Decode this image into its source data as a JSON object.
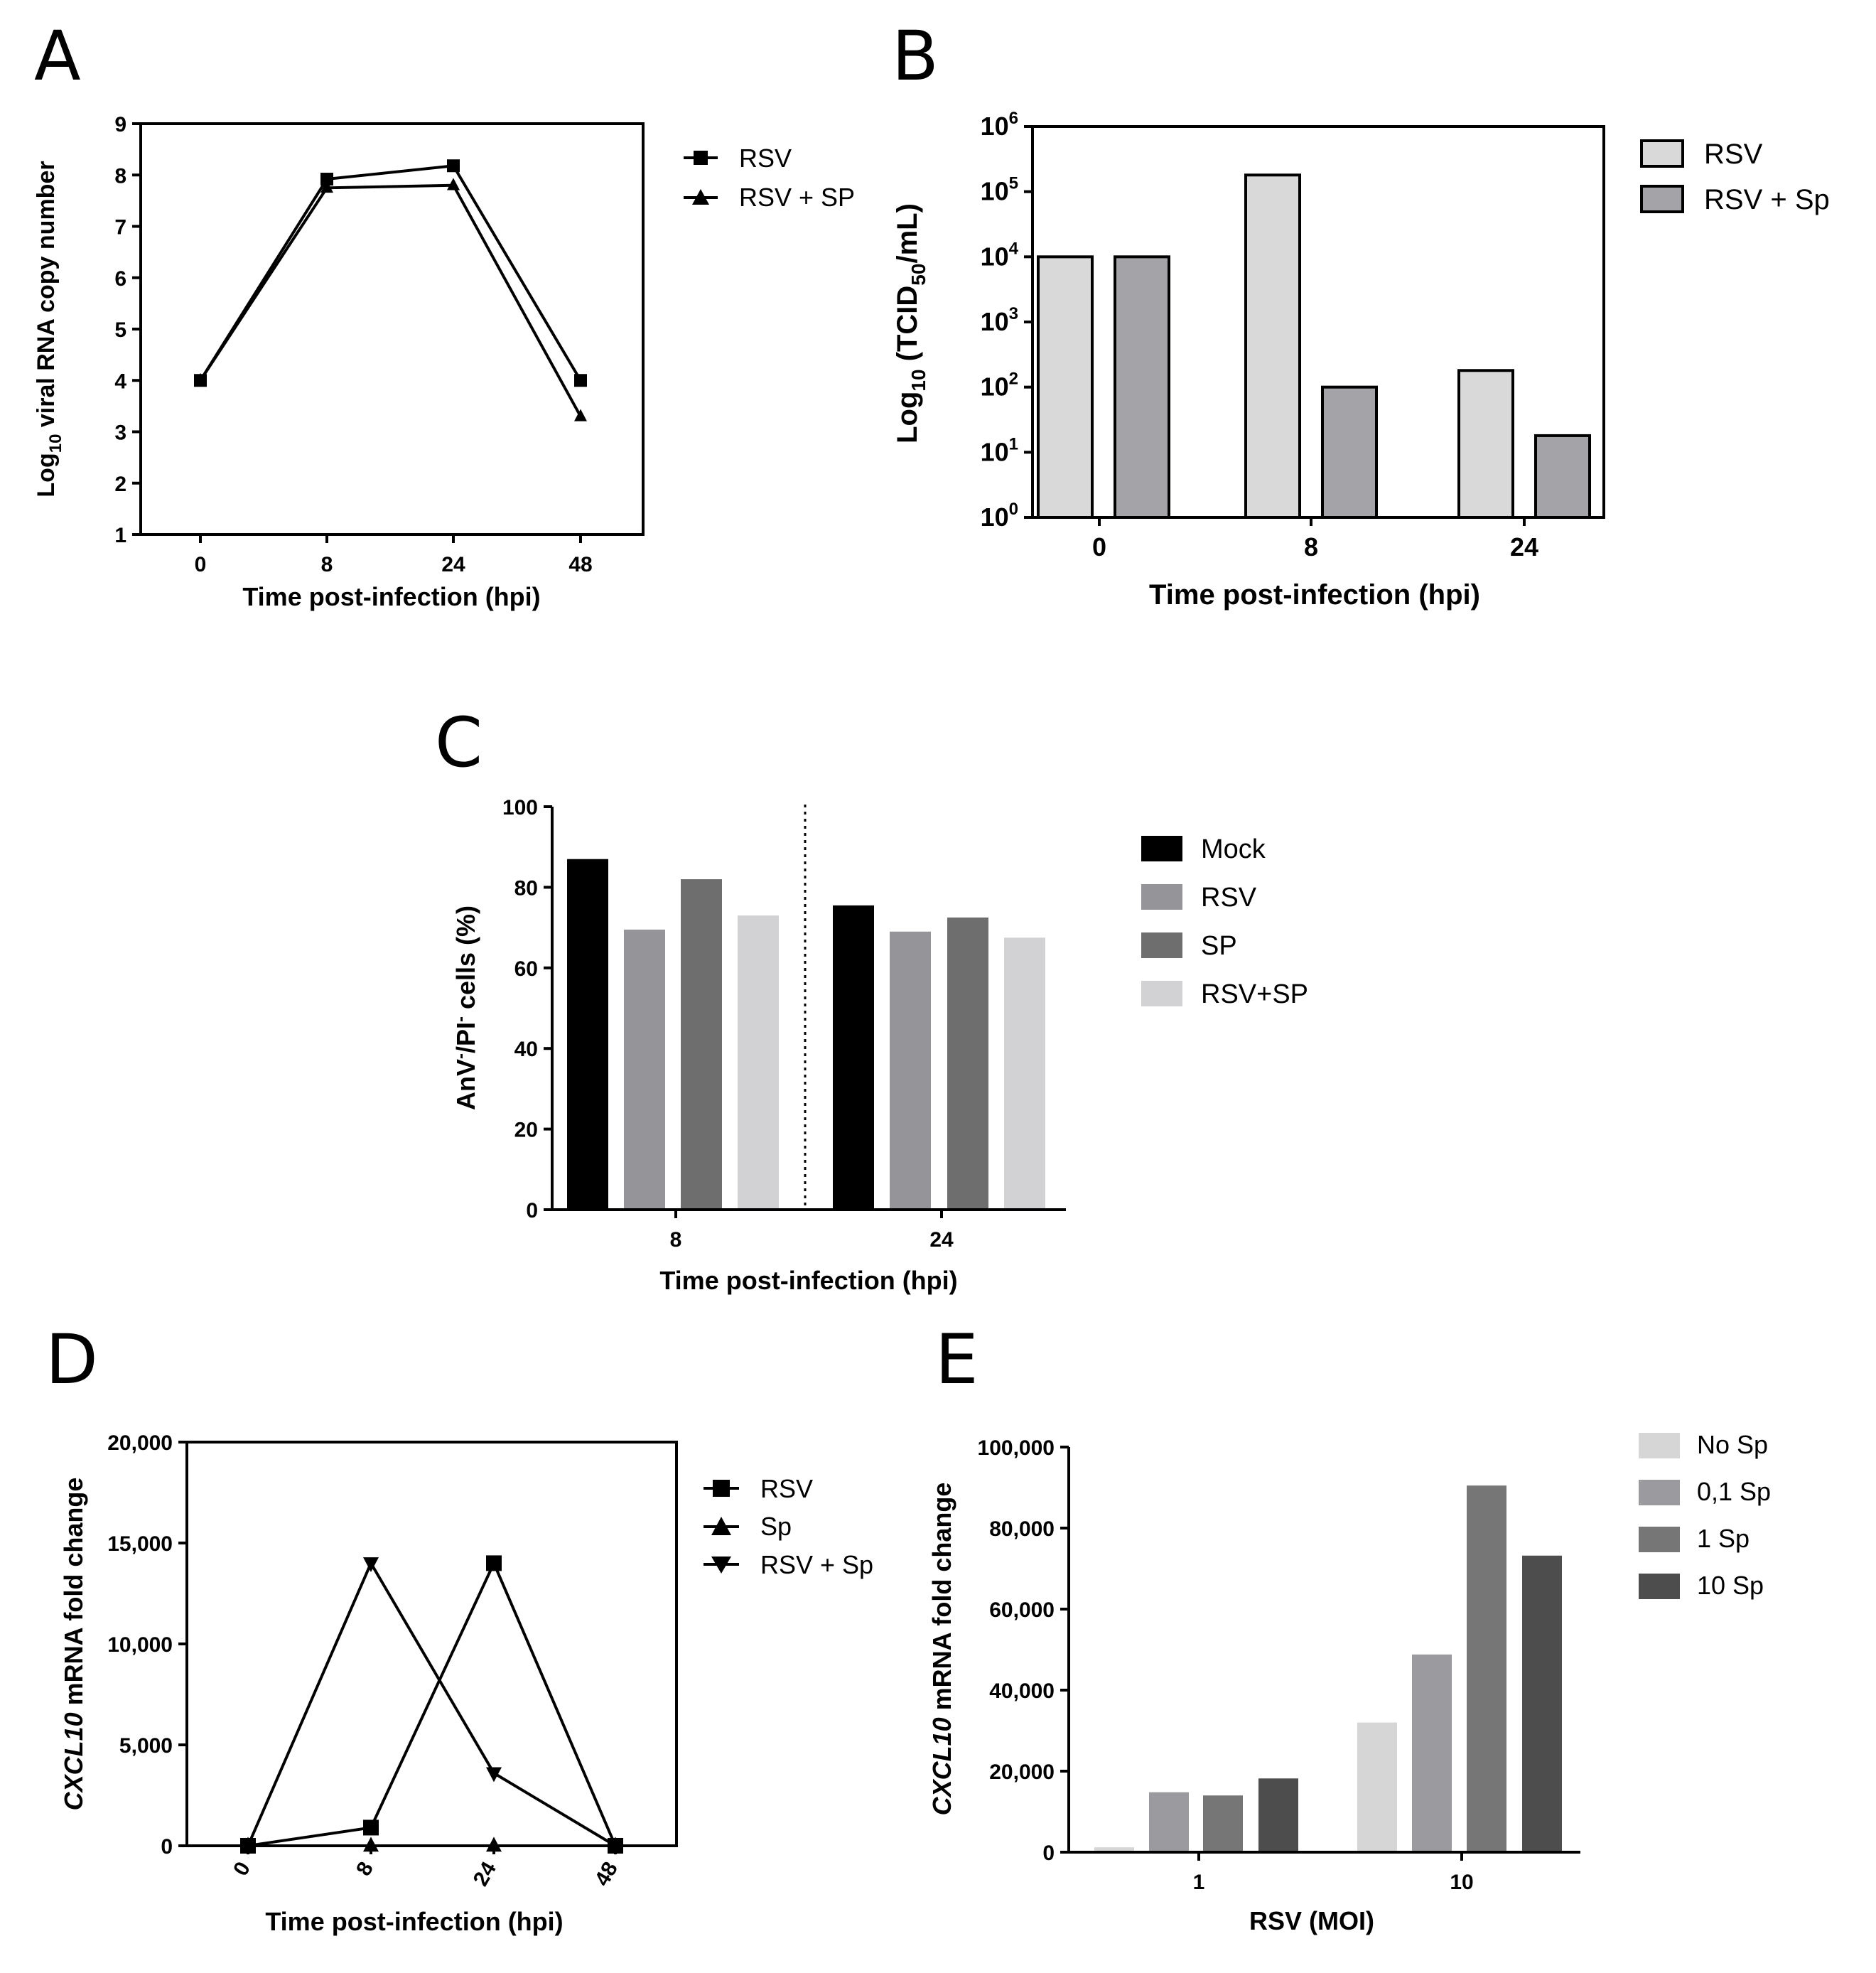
{
  "chart_data": [
    {
      "panel": "A",
      "type": "line",
      "categories": [
        "0",
        "8",
        "24",
        "48"
      ],
      "series": [
        {
          "name": "RSV",
          "marker": "square",
          "values": [
            4.0,
            7.92,
            8.18,
            4.0
          ]
        },
        {
          "name": "RSV + SP",
          "marker": "triangle-up",
          "values": [
            4.0,
            7.75,
            7.8,
            3.3
          ]
        }
      ],
      "ylabel_prefix": "Log",
      "ylabel_sub": "10",
      "ylabel_rest": " viral RNA copy number",
      "xlabel": "Time post-infection (hpi)",
      "ylim": [
        1,
        9
      ],
      "yticks": [
        "1",
        "2",
        "3",
        "4",
        "5",
        "6",
        "7",
        "8",
        "9"
      ]
    },
    {
      "panel": "B",
      "type": "bar",
      "scale": "log10",
      "categories": [
        "0",
        "8",
        "24"
      ],
      "series": [
        {
          "name": "RSV",
          "color": "#d9d9d9",
          "values": [
            10000,
            180000,
            180
          ]
        },
        {
          "name": "RSV + Sp",
          "color": "#a3a3a8",
          "values": [
            10000,
            100,
            18
          ]
        }
      ],
      "ylabel_prefix": "Log",
      "ylabel_sub": "10",
      "ylabel_mid": " (TCID",
      "ylabel_sub2": "50",
      "ylabel_rest": "/mL)",
      "xlabel": "Time post-infection (hpi)",
      "ylim_exp": [
        0,
        6
      ],
      "ytick_base": "10",
      "ytick_exps": [
        "0",
        "1",
        "2",
        "3",
        "4",
        "5",
        "6"
      ]
    },
    {
      "panel": "C",
      "type": "bar",
      "categories": [
        "8",
        "24"
      ],
      "series": [
        {
          "name": "Mock",
          "color": "#000000",
          "values": [
            87,
            75.5
          ]
        },
        {
          "name": "RSV",
          "color": "#959599",
          "values": [
            69.5,
            69
          ]
        },
        {
          "name": "SP",
          "color": "#6e6e6e",
          "values": [
            82,
            72.5
          ]
        },
        {
          "name": "RSV+SP",
          "color": "#d2d2d4",
          "values": [
            73,
            67.5
          ]
        }
      ],
      "ylabel_a": "AnV",
      "ylabel_sup1": "-",
      "ylabel_b": "/PI",
      "ylabel_sup2": "-",
      "ylabel_c": " cells (%)",
      "xlabel": "Time post-infection (hpi)",
      "ylim": [
        0,
        100
      ],
      "yticks": [
        "0",
        "20",
        "40",
        "60",
        "80",
        "100"
      ]
    },
    {
      "panel": "D",
      "type": "line",
      "categories": [
        "0",
        "8",
        "24",
        "48"
      ],
      "series": [
        {
          "name": "RSV",
          "marker": "square",
          "values": [
            0,
            900,
            14000,
            0
          ]
        },
        {
          "name": "Sp",
          "marker": "triangle-up",
          "values": [
            0,
            0,
            0,
            0
          ]
        },
        {
          "name": "RSV + Sp",
          "marker": "triangle-down",
          "values": [
            0,
            14000,
            3600,
            0
          ]
        }
      ],
      "ylabel_italic": "CXCL10",
      "ylabel_rest": " mRNA fold change",
      "xlabel": "Time post-infection (hpi)",
      "ylim": [
        0,
        20000
      ],
      "yticks": [
        "0",
        "5,000",
        "10,000",
        "15,000",
        "20,000"
      ]
    },
    {
      "panel": "E",
      "type": "bar",
      "categories": [
        "1",
        "10"
      ],
      "series": [
        {
          "name": "No Sp",
          "color": "#d6d6d6",
          "values": [
            1200,
            32000
          ]
        },
        {
          "name": "0,1 Sp",
          "color": "#9b9b9f",
          "values": [
            14800,
            48800
          ]
        },
        {
          "name": "1 Sp",
          "color": "#767676",
          "values": [
            14000,
            90500
          ]
        },
        {
          "name": "10 Sp",
          "color": "#4d4d4d",
          "values": [
            18200,
            73200
          ]
        }
      ],
      "ylabel_italic": "CXCL10",
      "ylabel_rest": " mRNA fold change",
      "xlabel": "RSV (MOI)",
      "ylim": [
        0,
        100000
      ],
      "yticks": [
        "0",
        "20,000",
        "40,000",
        "60,000",
        "80,000",
        "100,000"
      ]
    }
  ]
}
